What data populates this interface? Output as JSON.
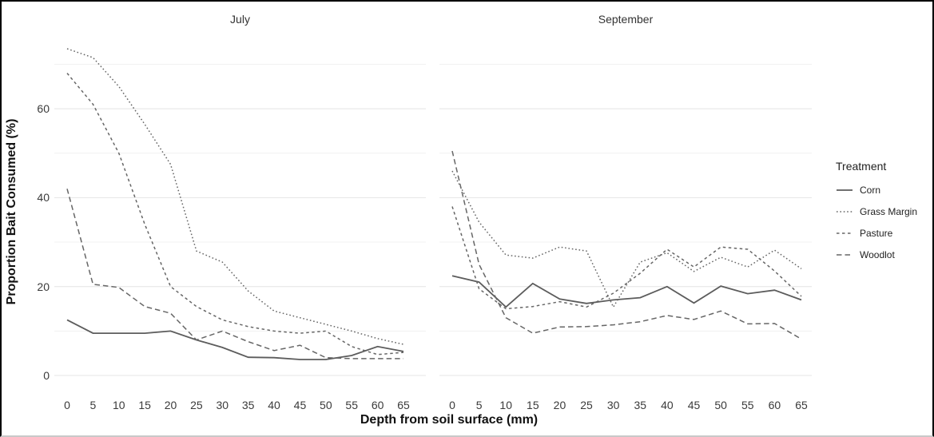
{
  "chart_data": {
    "type": "line",
    "title": "",
    "xlabel": "Depth from soil surface (mm)",
    "ylabel": "Proportion Bait Consumed (%)",
    "x_ticks": [
      0,
      5,
      10,
      15,
      20,
      25,
      30,
      35,
      40,
      45,
      50,
      55,
      60,
      65
    ],
    "y_ticks": [
      0,
      20,
      40,
      60
    ],
    "ylim": [
      0,
      75
    ],
    "grid": "horizontal-only, light grey major (0,20,40,60) and minor (10,30,50,70) lines on white background",
    "line_color": "#666666",
    "corn_color": "#5c5c5c",
    "legend": {
      "title": "Treatment",
      "position": "right",
      "items": [
        {
          "label": "Corn",
          "linetype": "solid"
        },
        {
          "label": "Grass Margin",
          "linetype": "dotted"
        },
        {
          "label": "Pasture",
          "linetype": "dashed"
        },
        {
          "label": "Woodlot",
          "linetype": "longdash"
        }
      ]
    },
    "panels": [
      {
        "title": "July",
        "x": [
          0,
          5,
          10,
          15,
          20,
          25,
          30,
          35,
          40,
          45,
          50,
          55,
          60,
          65
        ],
        "series": [
          {
            "name": "Corn",
            "linetype": "solid",
            "values": [
              12.5,
              9.5,
              9.5,
              9.5,
              10,
              8,
              6.3,
              4.1,
              4,
              3.6,
              3.6,
              4.5,
              6.5,
              5.4
            ]
          },
          {
            "name": "Grass Margin",
            "linetype": "dotted",
            "values": [
              73.5,
              71.5,
              65,
              56.5,
              47.5,
              28,
              25.5,
              19,
              14.5,
              13,
              11.5,
              10,
              8.3,
              7
            ]
          },
          {
            "name": "Pasture",
            "linetype": "dashed",
            "values": [
              68,
              61,
              50,
              34,
              20,
              15.5,
              12.5,
              11,
              10,
              9.5,
              10,
              6.5,
              4.7,
              5.2
            ]
          },
          {
            "name": "Woodlot",
            "linetype": "longdash",
            "values": [
              42,
              20.5,
              19.8,
              15.5,
              14,
              8,
              10,
              7.6,
              5.6,
              6.8,
              4,
              3.8,
              3.8,
              3.8
            ]
          }
        ]
      },
      {
        "title": "September",
        "x": [
          0,
          5,
          10,
          15,
          20,
          25,
          30,
          35,
          40,
          45,
          50,
          55,
          60,
          65
        ],
        "series": [
          {
            "name": "Corn",
            "linetype": "solid",
            "values": [
              22.4,
              21,
              15.4,
              20.7,
              17.2,
              16.2,
              17,
              17.5,
              20,
              16.3,
              20.1,
              18.4,
              19.2,
              17
            ]
          },
          {
            "name": "Grass Margin",
            "linetype": "dotted",
            "values": [
              46,
              34.5,
              27.1,
              26.4,
              28.9,
              28,
              15.4,
              25.5,
              27.6,
              23.4,
              26.6,
              24.4,
              28.2,
              24
            ]
          },
          {
            "name": "Pasture",
            "linetype": "dashed",
            "values": [
              38,
              19.5,
              15,
              15.5,
              16.6,
              15.4,
              18.5,
              23,
              28.4,
              24.4,
              28.9,
              28.4,
              23.5,
              17.8
            ]
          },
          {
            "name": "Woodlot",
            "linetype": "longdash",
            "values": [
              50.5,
              25,
              13,
              9.5,
              10.9,
              11,
              11.4,
              12.1,
              13.5,
              12.6,
              14.5,
              11.6,
              11.7,
              8.2
            ]
          }
        ]
      }
    ]
  }
}
